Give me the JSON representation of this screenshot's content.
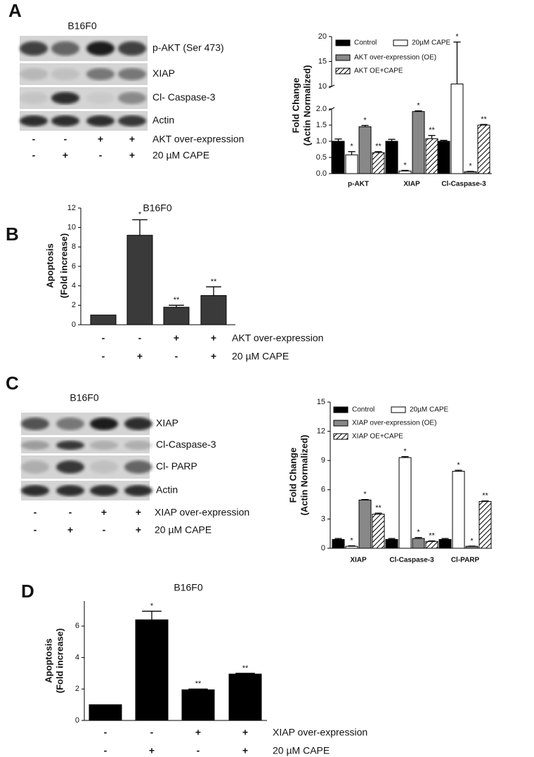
{
  "panels": {
    "letters": [
      "A",
      "B",
      "C",
      "D"
    ]
  },
  "blots": [
    {
      "title": "B16F0",
      "rows": [
        "p-AKT (Ser 473)",
        "XIAP",
        "Cl- Caspase-3",
        "Actin"
      ],
      "conditions": [
        {
          "label": "AKT over-expression",
          "signs": [
            "-",
            "-",
            "+",
            "+"
          ]
        },
        {
          "label": "20 µM CAPE",
          "signs": [
            "-",
            "+",
            "-",
            "+"
          ]
        }
      ]
    },
    {
      "title": "B16F0",
      "rows": [
        "XIAP",
        "Cl-Caspase-3",
        "Cl- PARP",
        "Actin"
      ],
      "conditions": [
        {
          "label": "XIAP over-expression",
          "signs": [
            "-",
            "-",
            "+",
            "+"
          ]
        },
        {
          "label": "20 µM CAPE",
          "signs": [
            "-",
            "+",
            "-",
            "+"
          ]
        }
      ]
    }
  ],
  "chart_data": [
    {
      "type": "bar",
      "ylabel": [
        "Fold Change",
        "(Actin Normalized)"
      ],
      "categories": [
        "p-AKT",
        "XIAP",
        "Cl-Caspase-3"
      ],
      "series": [
        {
          "name": "Control",
          "color": "#000000",
          "values": [
            1.0,
            1.0,
            1.0
          ],
          "errors": [
            0.07,
            0.06,
            0.03
          ],
          "annotations": [
            null,
            null,
            null
          ]
        },
        {
          "name": "20µM CAPE",
          "color": "#ffffff",
          "values": [
            0.58,
            0.08,
            10.5
          ],
          "errors": [
            0.1,
            0.02,
            8.4
          ],
          "annotations": [
            "*",
            "*",
            "*"
          ]
        },
        {
          "name": "AKT over-expression (OE)",
          "color": "#888888",
          "values": [
            1.45,
            1.92,
            0.06
          ],
          "errors": [
            0.04,
            0.02,
            0.01
          ],
          "annotations": [
            "*",
            "*",
            "*"
          ]
        },
        {
          "name": "AKT OE+CAPE",
          "color": "#ffffff",
          "hatch": true,
          "values": [
            0.65,
            1.08,
            1.5
          ],
          "errors": [
            0.03,
            0.1,
            0.02
          ],
          "annotations": [
            "**",
            "**",
            "**"
          ]
        }
      ],
      "ylim": [
        0,
        20
      ],
      "ybreak": [
        2,
        10
      ],
      "yticks": [
        {
          "value": 0,
          "label": "0.0"
        },
        0.5,
        {
          "value": 1,
          "label": "1.0"
        },
        1.5,
        {
          "value": 2,
          "label": "2.0"
        },
        10,
        15,
        20
      ]
    },
    {
      "type": "bar",
      "title": "B16F0",
      "ylabel": [
        "Apoptosis",
        "(Fold increase)"
      ],
      "values": [
        1.0,
        9.2,
        1.8,
        3.0
      ],
      "errors": [
        0,
        1.6,
        0.2,
        0.9
      ],
      "annotations": [
        null,
        "*",
        "**",
        "**"
      ],
      "color": "#3a3a3a",
      "ylim": [
        0,
        12
      ],
      "yticks": [
        0,
        2,
        4,
        6,
        8,
        10,
        12
      ],
      "conditions": [
        {
          "label": "AKT over-expression",
          "signs": [
            "-",
            "-",
            "+",
            "+"
          ]
        },
        {
          "label": "20 µM CAPE",
          "signs": [
            "-",
            "+",
            "-",
            "+"
          ]
        }
      ]
    },
    {
      "type": "bar",
      "ylabel": [
        "Fold Change",
        "(Actin Normalized)"
      ],
      "categories": [
        "XIAP",
        "Cl-Caspase-3",
        "Cl-PARP"
      ],
      "series": [
        {
          "name": "Control",
          "color": "#000000",
          "values": [
            0.9,
            0.9,
            0.9
          ],
          "errors": [
            0.1,
            0.1,
            0.1
          ],
          "annotations": [
            null,
            null,
            null
          ]
        },
        {
          "name": "20µM CAPE",
          "color": "#ffffff",
          "values": [
            0.2,
            9.3,
            7.9
          ],
          "errors": [
            0.05,
            0.1,
            0.1
          ],
          "annotations": [
            "*",
            "*",
            "*"
          ]
        },
        {
          "name": "XIAP over-expression (OE)",
          "color": "#888888",
          "values": [
            4.95,
            1.0,
            0.2
          ],
          "errors": [
            0.05,
            0.1,
            0.02
          ],
          "annotations": [
            "*",
            "*",
            "*"
          ]
        },
        {
          "name": "XIAP OE+CAPE",
          "color": "#ffffff",
          "hatch": true,
          "values": [
            3.5,
            0.7,
            4.8
          ],
          "errors": [
            0.1,
            0.05,
            0.05
          ],
          "annotations": [
            "**",
            "**",
            "**"
          ]
        }
      ],
      "ylim": [
        0,
        15
      ],
      "yticks": [
        0,
        3,
        6,
        9,
        12,
        15
      ]
    },
    {
      "type": "bar",
      "title": "B16F0",
      "ylabel": [
        "Apoptosis",
        "(Fold increase)"
      ],
      "values": [
        1.0,
        6.4,
        1.95,
        2.95
      ],
      "errors": [
        0,
        0.55,
        0.05,
        0.05
      ],
      "annotations": [
        null,
        "*",
        "**",
        "**"
      ],
      "color": "#000000",
      "ylim": [
        0,
        7.6
      ],
      "yticks": [
        0,
        2,
        4,
        6
      ],
      "conditions": [
        {
          "label": "XIAP over-expression",
          "signs": [
            "-",
            "-",
            "+",
            "+"
          ]
        },
        {
          "label": "20 µM CAPE",
          "signs": [
            "-",
            "+",
            "-",
            "+"
          ]
        }
      ]
    }
  ]
}
